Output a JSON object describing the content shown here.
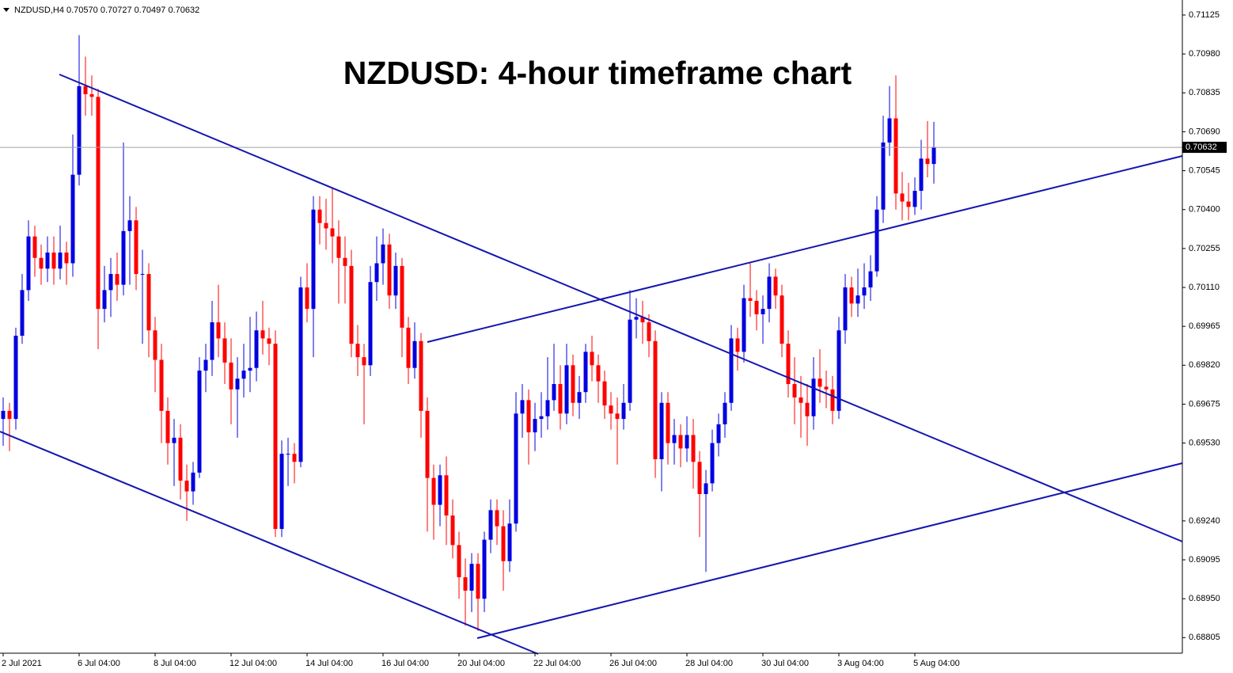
{
  "chart_data": {
    "type": "candlestick",
    "header": "NZDUSD,H4  0.70570 0.70727 0.70497 0.70632",
    "title": "NZDUSD: 4-hour timeframe chart",
    "bull_color": "#0000e0",
    "bear_color": "#ff0000",
    "last_price": 0.70632,
    "xlim": [
      -0.5,
      186.25
    ],
    "ylim": [
      0.68747,
      0.71181
    ],
    "yticks": [
      0.71125,
      {
        "value": 0.7098,
        "label": "0.70980"
      },
      0.70835,
      {
        "value": 0.7069,
        "label": "0.70690"
      },
      0.70545,
      {
        "value": 0.704,
        "label": "0.70400"
      },
      0.70255,
      {
        "value": 0.7011,
        "label": "0.70110"
      },
      0.69965,
      {
        "value": 0.6982,
        "label": "0.69820"
      },
      0.69675,
      {
        "value": 0.6953,
        "label": "0.69530"
      },
      {
        "value": 0.6924,
        "label": "0.69240"
      },
      0.69095,
      {
        "value": 0.6895,
        "label": "0.68950"
      },
      0.68805
    ],
    "xticks": [
      {
        "value": 0,
        "label": "2 Jul 2021"
      },
      {
        "value": 12,
        "label": "6 Jul 04:00"
      },
      {
        "value": 24,
        "label": "8 Jul 04:00"
      },
      {
        "value": 36,
        "label": "12 Jul 04:00"
      },
      {
        "value": 48,
        "label": "14 Jul 04:00"
      },
      {
        "value": 60,
        "label": "16 Jul 04:00"
      },
      {
        "value": 72,
        "label": "20 Jul 04:00"
      },
      {
        "value": 84,
        "label": "22 Jul 04:00"
      },
      {
        "value": 96,
        "label": "26 Jul 04:00"
      },
      {
        "value": 108,
        "label": "28 Jul 04:00"
      },
      {
        "value": 120,
        "label": "30 Jul 04:00"
      },
      {
        "value": 132,
        "label": "3 Aug 04:00"
      },
      {
        "value": 144,
        "label": "5 Aug 04:00"
      }
    ],
    "ohlc": [
      [
        0.6962,
        0.697,
        0.6952,
        0.6965
      ],
      [
        0.6965,
        0.6968,
        0.695,
        0.6962
      ],
      [
        0.6962,
        0.6996,
        0.6958,
        0.6993
      ],
      [
        0.6993,
        0.7016,
        0.699,
        0.701
      ],
      [
        0.701,
        0.7036,
        0.7006,
        0.703
      ],
      [
        0.703,
        0.7034,
        0.7015,
        0.7022
      ],
      [
        0.7022,
        0.7027,
        0.7012,
        0.7018
      ],
      [
        0.7018,
        0.703,
        0.7013,
        0.7024
      ],
      [
        0.7024,
        0.703,
        0.7012,
        0.7018
      ],
      [
        0.7018,
        0.7034,
        0.7014,
        0.7024
      ],
      [
        0.7024,
        0.7028,
        0.7012,
        0.702
      ],
      [
        0.702,
        0.7068,
        0.7015,
        0.7053
      ],
      [
        0.7053,
        0.7105,
        0.7049,
        0.7086
      ],
      [
        0.7086,
        0.7097,
        0.7075,
        0.7083
      ],
      [
        0.7083,
        0.709,
        0.7075,
        0.7082
      ],
      [
        0.7082,
        0.7085,
        0.6988,
        0.7003
      ],
      [
        0.7003,
        0.7019,
        0.6998,
        0.701
      ],
      [
        0.701,
        0.7022,
        0.7,
        0.7016
      ],
      [
        0.7016,
        0.7024,
        0.7006,
        0.7012
      ],
      [
        0.7012,
        0.7065,
        0.7008,
        0.7032
      ],
      [
        0.7032,
        0.7045,
        0.7012,
        0.7036
      ],
      [
        0.7036,
        0.7041,
        0.701,
        0.7016
      ],
      [
        0.7016,
        0.7025,
        0.699,
        0.7016
      ],
      [
        0.7016,
        0.702,
        0.6985,
        0.6995
      ],
      [
        0.6995,
        0.7,
        0.6972,
        0.6984
      ],
      [
        0.6984,
        0.699,
        0.6953,
        0.6965
      ],
      [
        0.6965,
        0.697,
        0.6945,
        0.6953
      ],
      [
        0.6953,
        0.6962,
        0.6937,
        0.6955
      ],
      [
        0.6955,
        0.696,
        0.6932,
        0.6939
      ],
      [
        0.6939,
        0.6945,
        0.6924,
        0.6935
      ],
      [
        0.6935,
        0.6946,
        0.693,
        0.6942
      ],
      [
        0.6942,
        0.6985,
        0.694,
        0.698
      ],
      [
        0.698,
        0.699,
        0.6972,
        0.6984
      ],
      [
        0.6984,
        0.7006,
        0.6978,
        0.6998
      ],
      [
        0.6998,
        0.7012,
        0.6985,
        0.6992
      ],
      [
        0.6992,
        0.6998,
        0.6975,
        0.6983
      ],
      [
        0.6983,
        0.6992,
        0.696,
        0.6973
      ],
      [
        0.6973,
        0.6985,
        0.6955,
        0.6977
      ],
      [
        0.6977,
        0.699,
        0.697,
        0.698
      ],
      [
        0.698,
        0.7,
        0.6972,
        0.6981
      ],
      [
        0.6981,
        0.7002,
        0.6976,
        0.6995
      ],
      [
        0.6995,
        0.7006,
        0.6986,
        0.6992
      ],
      [
        0.6992,
        0.6996,
        0.6982,
        0.699
      ],
      [
        0.699,
        0.6995,
        0.6918,
        0.6921
      ],
      [
        0.6921,
        0.6954,
        0.6918,
        0.6949
      ],
      [
        0.6949,
        0.6955,
        0.6937,
        0.6949
      ],
      [
        0.6949,
        0.6953,
        0.6938,
        0.6946
      ],
      [
        0.6946,
        0.7015,
        0.6944,
        0.7011
      ],
      [
        0.7011,
        0.702,
        0.6998,
        0.7003
      ],
      [
        0.7003,
        0.7045,
        0.6985,
        0.704
      ],
      [
        0.704,
        0.7045,
        0.7027,
        0.7035
      ],
      [
        0.7035,
        0.7044,
        0.7025,
        0.7033
      ],
      [
        0.7033,
        0.7048,
        0.702,
        0.703
      ],
      [
        0.703,
        0.7036,
        0.7005,
        0.7022
      ],
      [
        0.7022,
        0.703,
        0.7005,
        0.7019
      ],
      [
        0.7019,
        0.7025,
        0.6985,
        0.699
      ],
      [
        0.699,
        0.6997,
        0.6978,
        0.6985
      ],
      [
        0.6985,
        0.699,
        0.696,
        0.6982
      ],
      [
        0.6982,
        0.7019,
        0.6978,
        0.7013
      ],
      [
        0.7013,
        0.703,
        0.7006,
        0.702
      ],
      [
        0.702,
        0.7033,
        0.7012,
        0.7027
      ],
      [
        0.7027,
        0.7031,
        0.7003,
        0.7008
      ],
      [
        0.7008,
        0.7024,
        0.7003,
        0.7019
      ],
      [
        0.7019,
        0.7022,
        0.6985,
        0.6996
      ],
      [
        0.6996,
        0.7,
        0.6975,
        0.6981
      ],
      [
        0.6981,
        0.6998,
        0.6977,
        0.6991
      ],
      [
        0.6991,
        0.6994,
        0.6955,
        0.6965
      ],
      [
        0.6965,
        0.697,
        0.692,
        0.694
      ],
      [
        0.694,
        0.6945,
        0.6917,
        0.693
      ],
      [
        0.693,
        0.6945,
        0.6922,
        0.6941
      ],
      [
        0.6941,
        0.6948,
        0.6915,
        0.6926
      ],
      [
        0.6926,
        0.6932,
        0.691,
        0.6915
      ],
      [
        0.6915,
        0.692,
        0.6895,
        0.6903
      ],
      [
        0.6903,
        0.691,
        0.6885,
        0.6898
      ],
      [
        0.6898,
        0.6912,
        0.689,
        0.6908
      ],
      [
        0.6908,
        0.6912,
        0.6883,
        0.6895
      ],
      [
        0.6895,
        0.692,
        0.689,
        0.6917
      ],
      [
        0.6917,
        0.6932,
        0.6912,
        0.6928
      ],
      [
        0.6928,
        0.6932,
        0.6915,
        0.6922
      ],
      [
        0.6922,
        0.6928,
        0.6898,
        0.6909
      ],
      [
        0.6909,
        0.6932,
        0.6905,
        0.6923
      ],
      [
        0.6923,
        0.6972,
        0.692,
        0.6964
      ],
      [
        0.6964,
        0.6975,
        0.6955,
        0.6969
      ],
      [
        0.6969,
        0.6973,
        0.6945,
        0.6957
      ],
      [
        0.6957,
        0.6968,
        0.695,
        0.6962
      ],
      [
        0.6962,
        0.6972,
        0.6955,
        0.6963
      ],
      [
        0.6963,
        0.6985,
        0.6958,
        0.6969
      ],
      [
        0.6969,
        0.699,
        0.6965,
        0.6975
      ],
      [
        0.6975,
        0.6982,
        0.6958,
        0.6964
      ],
      [
        0.6964,
        0.699,
        0.696,
        0.6982
      ],
      [
        0.6982,
        0.6986,
        0.6963,
        0.6968
      ],
      [
        0.6968,
        0.6978,
        0.6962,
        0.6972
      ],
      [
        0.6972,
        0.699,
        0.6968,
        0.6987
      ],
      [
        0.6987,
        0.6993,
        0.6976,
        0.6982
      ],
      [
        0.6982,
        0.6986,
        0.6968,
        0.6976
      ],
      [
        0.6976,
        0.698,
        0.6962,
        0.6967
      ],
      [
        0.6967,
        0.6972,
        0.6958,
        0.6964
      ],
      [
        0.6964,
        0.697,
        0.6945,
        0.6962
      ],
      [
        0.6962,
        0.6975,
        0.6958,
        0.6968
      ],
      [
        0.6968,
        0.701,
        0.6965,
        0.6999
      ],
      [
        0.6999,
        0.7007,
        0.6992,
        0.7
      ],
      [
        0.7,
        0.7006,
        0.699,
        0.6998
      ],
      [
        0.6998,
        0.7001,
        0.6985,
        0.6991
      ],
      [
        0.6991,
        0.6995,
        0.694,
        0.6947
      ],
      [
        0.6947,
        0.6972,
        0.6935,
        0.6968
      ],
      [
        0.6968,
        0.6972,
        0.6945,
        0.6953
      ],
      [
        0.6953,
        0.6962,
        0.6945,
        0.6956
      ],
      [
        0.6956,
        0.696,
        0.6944,
        0.6951
      ],
      [
        0.6951,
        0.6963,
        0.6946,
        0.6956
      ],
      [
        0.6956,
        0.6962,
        0.6936,
        0.6946
      ],
      [
        0.6946,
        0.695,
        0.6918,
        0.6934
      ],
      [
        0.6934,
        0.6943,
        0.6905,
        0.6938
      ],
      [
        0.6938,
        0.6958,
        0.6935,
        0.6953
      ],
      [
        0.6953,
        0.6964,
        0.6948,
        0.696
      ],
      [
        0.696,
        0.6972,
        0.6955,
        0.6968
      ],
      [
        0.6968,
        0.6997,
        0.6965,
        0.6992
      ],
      [
        0.6992,
        0.6996,
        0.698,
        0.6987
      ],
      [
        0.6987,
        0.7012,
        0.6983,
        0.7007
      ],
      [
        0.7007,
        0.702,
        0.7,
        0.7006
      ],
      [
        0.7006,
        0.701,
        0.6995,
        0.7001
      ],
      [
        0.7001,
        0.7008,
        0.699,
        0.7003
      ],
      [
        0.7003,
        0.702,
        0.6998,
        0.7015
      ],
      [
        0.7015,
        0.7018,
        0.7003,
        0.7008
      ],
      [
        0.7008,
        0.7012,
        0.6985,
        0.699
      ],
      [
        0.699,
        0.6995,
        0.697,
        0.6975
      ],
      [
        0.6975,
        0.6985,
        0.696,
        0.697
      ],
      [
        0.697,
        0.6978,
        0.6955,
        0.6968
      ],
      [
        0.6968,
        0.6975,
        0.6952,
        0.6963
      ],
      [
        0.6963,
        0.6985,
        0.6958,
        0.6977
      ],
      [
        0.6977,
        0.6988,
        0.6968,
        0.6974
      ],
      [
        0.6974,
        0.698,
        0.6966,
        0.6973
      ],
      [
        0.6973,
        0.6978,
        0.696,
        0.6965
      ],
      [
        0.6965,
        0.7,
        0.6962,
        0.6995
      ],
      [
        0.6995,
        0.7016,
        0.699,
        0.7011
      ],
      [
        0.7011,
        0.7015,
        0.7,
        0.7005
      ],
      [
        0.7005,
        0.7018,
        0.7,
        0.7008
      ],
      [
        0.7008,
        0.702,
        0.7003,
        0.7011
      ],
      [
        0.7011,
        0.7023,
        0.7006,
        0.7017
      ],
      [
        0.7017,
        0.7045,
        0.7015,
        0.704
      ],
      [
        0.704,
        0.7075,
        0.7035,
        0.7065
      ],
      [
        0.7065,
        0.7086,
        0.706,
        0.7074
      ],
      [
        0.7074,
        0.709,
        0.704,
        0.7046
      ],
      [
        0.7046,
        0.7054,
        0.7036,
        0.7043
      ],
      [
        0.7043,
        0.705,
        0.7036,
        0.7041
      ],
      [
        0.7041,
        0.7052,
        0.7038,
        0.7047
      ],
      [
        0.7047,
        0.7066,
        0.704,
        0.7059
      ],
      [
        0.7059,
        0.7073,
        0.7052,
        0.7057
      ],
      [
        0.7057,
        0.70727,
        0.70497,
        0.70632
      ]
    ]
  }
}
